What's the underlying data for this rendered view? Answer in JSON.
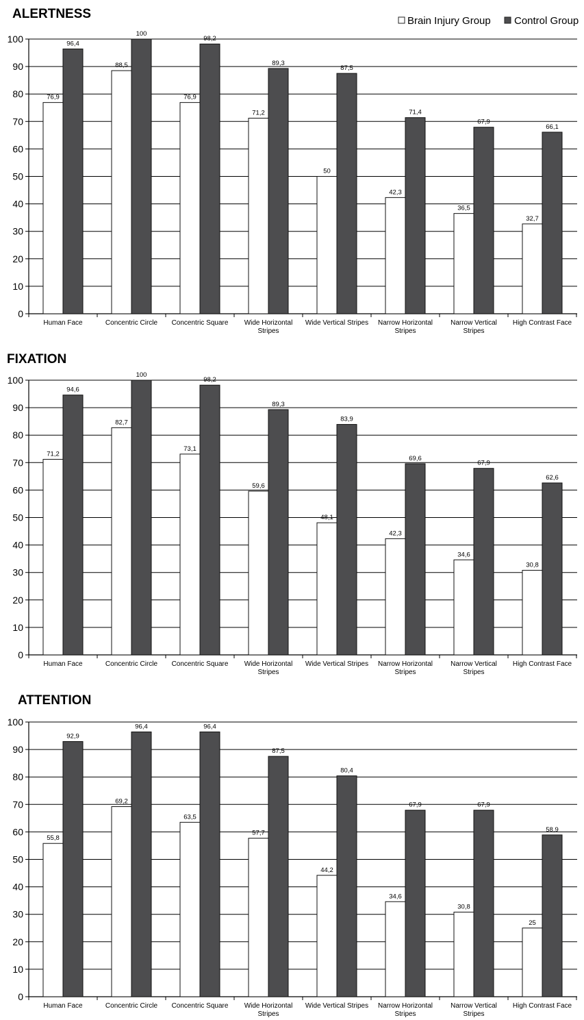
{
  "legend": {
    "items": [
      {
        "label": "Brain Injury Group",
        "color": "#ffffff"
      },
      {
        "label": "Control Group",
        "color": "#4d4d4f"
      }
    ]
  },
  "chart_data": [
    {
      "type": "bar",
      "title": "ALERTNESS",
      "ylim": [
        0,
        100
      ],
      "yticks": [
        "0",
        "10",
        "20",
        "30",
        "40",
        "50",
        "60",
        "70",
        "80",
        "90",
        "100"
      ],
      "grid": true,
      "categories": [
        [
          "Human Face"
        ],
        [
          "Concentric Circle"
        ],
        [
          "Concentric Square"
        ],
        [
          "Wide Horizontal",
          "Stripes"
        ],
        [
          "Wide Vertical Stripes"
        ],
        [
          "Narrow Horizontal",
          "Stripes"
        ],
        [
          "Narrow Vertical",
          "Stripes"
        ],
        [
          "High Contrast Face"
        ]
      ],
      "series": [
        {
          "name": "Brain Injury Group",
          "values": [
            76.9,
            88.5,
            76.9,
            71.2,
            50,
            42.3,
            36.5,
            32.7
          ],
          "labels": [
            "76,9",
            "88,5",
            "76,9",
            "71,2",
            "50",
            "42,3",
            "36,5",
            "32,7"
          ]
        },
        {
          "name": "Control Group",
          "values": [
            96.4,
            100,
            98.2,
            89.3,
            87.5,
            71.4,
            67.9,
            66.1
          ],
          "labels": [
            "96,4",
            "100",
            "98,2",
            "89,3",
            "87,5",
            "71,4",
            "67,9",
            "66,1"
          ]
        }
      ]
    },
    {
      "type": "bar",
      "title": "FIXATION",
      "ylim": [
        0,
        100
      ],
      "yticks": [
        "0",
        "10",
        "20",
        "30",
        "40",
        "50",
        "60",
        "70",
        "80",
        "90",
        "100"
      ],
      "grid": true,
      "categories": [
        [
          "Human Face"
        ],
        [
          "Concentric Circle"
        ],
        [
          "Concentric Square"
        ],
        [
          "Wide Horizontal",
          "Stripes"
        ],
        [
          "Wide Vertical Stripes"
        ],
        [
          "Narrow Horizontal",
          "Stripes"
        ],
        [
          "Narrow Vertical",
          "Stripes"
        ],
        [
          "High Contrast Face"
        ]
      ],
      "series": [
        {
          "name": "Brain Injury Group",
          "values": [
            71.2,
            82.7,
            73.1,
            59.6,
            48.1,
            42.3,
            34.6,
            30.8
          ],
          "labels": [
            "71,2",
            "82,7",
            "73,1",
            "59,6",
            "48,1",
            "42,3",
            "34,6",
            "30,8"
          ]
        },
        {
          "name": "Control Group",
          "values": [
            94.6,
            100,
            98.2,
            89.3,
            83.9,
            69.6,
            67.9,
            62.6
          ],
          "labels": [
            "94,6",
            "100",
            "98,2",
            "89,3",
            "83,9",
            "69,6",
            "67,9",
            "62,6"
          ]
        }
      ]
    },
    {
      "type": "bar",
      "title": "ATTENTION",
      "ylim": [
        0,
        100
      ],
      "yticks": [
        "0",
        "10",
        "20",
        "30",
        "40",
        "50",
        "60",
        "70",
        "80",
        "90",
        "100"
      ],
      "grid": true,
      "categories": [
        [
          "Human Face"
        ],
        [
          "Concentric Circle"
        ],
        [
          "Concentric Square"
        ],
        [
          "Wide Horizontal",
          "Stripes"
        ],
        [
          "Wide Vertical Stripes"
        ],
        [
          "Narrow Horizontal",
          "Stripes"
        ],
        [
          "Narrow Vertical",
          "Stripes"
        ],
        [
          "High Contrast Face"
        ]
      ],
      "series": [
        {
          "name": "Brain Injury Group",
          "values": [
            55.8,
            69.2,
            63.5,
            57.7,
            44.2,
            34.6,
            30.8,
            25
          ],
          "labels": [
            "55,8",
            "69,2",
            "63,5",
            "57,7",
            "44,2",
            "34,6",
            "30,8",
            "25"
          ]
        },
        {
          "name": "Control Group",
          "values": [
            92.9,
            96.4,
            96.4,
            87.5,
            80.4,
            67.9,
            67.9,
            58.9
          ],
          "labels": [
            "92,9",
            "96,4",
            "96,4",
            "87,5",
            "80,4",
            "67,9",
            "67,9",
            "58,9"
          ]
        }
      ]
    }
  ]
}
